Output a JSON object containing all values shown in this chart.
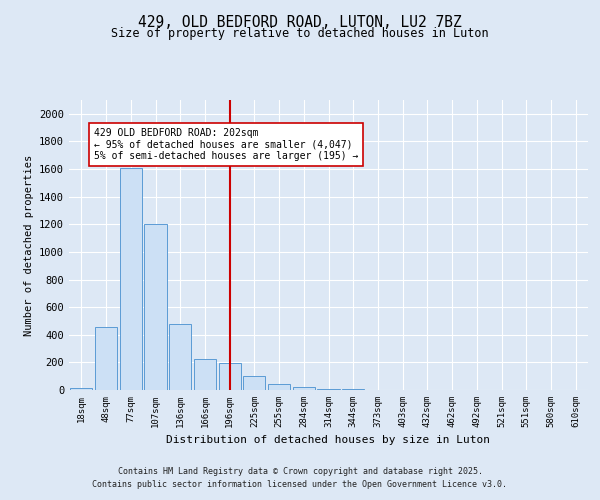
{
  "title_line1": "429, OLD BEDFORD ROAD, LUTON, LU2 7BZ",
  "title_line2": "Size of property relative to detached houses in Luton",
  "xlabel": "Distribution of detached houses by size in Luton",
  "ylabel": "Number of detached properties",
  "categories": [
    "18sqm",
    "48sqm",
    "77sqm",
    "107sqm",
    "136sqm",
    "166sqm",
    "196sqm",
    "225sqm",
    "255sqm",
    "284sqm",
    "314sqm",
    "344sqm",
    "373sqm",
    "403sqm",
    "432sqm",
    "462sqm",
    "492sqm",
    "521sqm",
    "551sqm",
    "580sqm",
    "610sqm"
  ],
  "values": [
    18,
    455,
    1610,
    1205,
    475,
    225,
    195,
    105,
    40,
    20,
    8,
    5,
    3,
    2,
    2,
    1,
    1,
    1,
    0,
    0,
    0
  ],
  "bar_color": "#cce0f5",
  "bar_edge_color": "#5b9bd5",
  "red_line_index": 6,
  "annotation_text": "429 OLD BEDFORD ROAD: 202sqm\n← 95% of detached houses are smaller (4,047)\n5% of semi-detached houses are larger (195) →",
  "annotation_box_color": "#ffffff",
  "annotation_box_edge": "#cc0000",
  "red_line_color": "#cc0000",
  "ylim": [
    0,
    2100
  ],
  "yticks": [
    0,
    200,
    400,
    600,
    800,
    1000,
    1200,
    1400,
    1600,
    1800,
    2000
  ],
  "footer_line1": "Contains HM Land Registry data © Crown copyright and database right 2025.",
  "footer_line2": "Contains public sector information licensed under the Open Government Licence v3.0.",
  "background_color": "#dde8f5",
  "plot_bg_color": "#dde8f5",
  "grid_color": "#ffffff"
}
